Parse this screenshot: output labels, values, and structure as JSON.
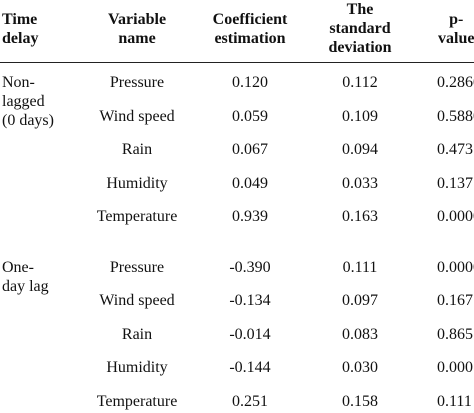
{
  "table": {
    "headers": {
      "time_delay": [
        "Time",
        "delay"
      ],
      "variable_name": [
        "Variable",
        "name"
      ],
      "coefficient": [
        "Coefficient",
        "estimation"
      ],
      "std_dev": [
        "The",
        "standard",
        "deviation"
      ],
      "p_value": [
        "p-",
        "value"
      ]
    },
    "groups": [
      {
        "label": [
          "Non-",
          "lagged",
          "(0 days)"
        ],
        "rows": [
          {
            "variable": "Pressure",
            "coef": "0.120",
            "sd": "0.112",
            "p": "0.2860"
          },
          {
            "variable": "Wind speed",
            "coef": "0.059",
            "sd": "0.109",
            "p": "0.5880"
          },
          {
            "variable": "Rain",
            "coef": "0.067",
            "sd": "0.094",
            "p": "0.473"
          },
          {
            "variable": "Humidity",
            "coef": "0.049",
            "sd": "0.033",
            "p": "0.137"
          },
          {
            "variable": "Temperature",
            "coef": "0.939",
            "sd": "0.163",
            "p": "0.0000"
          }
        ]
      },
      {
        "label": [
          "One-",
          "day lag"
        ],
        "rows": [
          {
            "variable": "Pressure",
            "coef": "-0.390",
            "sd": "0.111",
            "p": "0.0000"
          },
          {
            "variable": "Wind speed",
            "coef": "-0.134",
            "sd": "0.097",
            "p": "0.167"
          },
          {
            "variable": "Rain",
            "coef": "-0.014",
            "sd": "0.083",
            "p": "0.865"
          },
          {
            "variable": "Humidity",
            "coef": "-0.144",
            "sd": "0.030",
            "p": "0.000"
          },
          {
            "variable": "Temperature",
            "coef": "0.251",
            "sd": "0.158",
            "p": "0.111"
          }
        ]
      }
    ]
  }
}
